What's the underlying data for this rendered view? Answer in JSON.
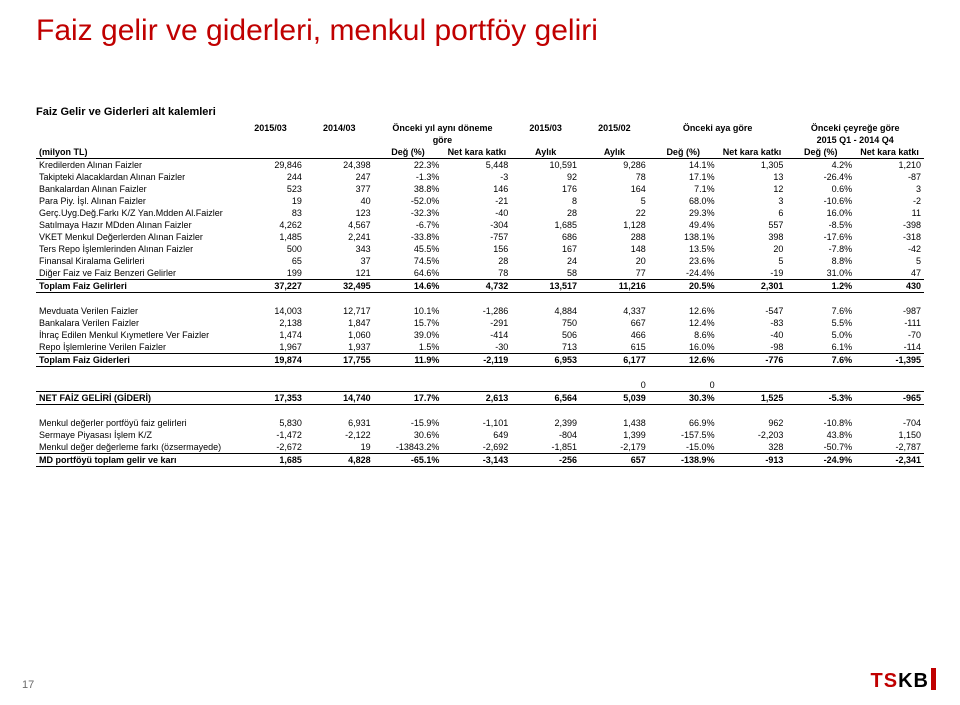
{
  "title": "Faiz gelir ve giderleri, menkul portföy geliri",
  "subtitle": "Faiz Gelir ve Giderleri alt kalemleri",
  "pageNumber": "17",
  "logo": {
    "t": "TS",
    "s": "KB"
  },
  "header1": [
    "",
    "2015/03",
    "2014/03",
    "Önceki yıl aynı döneme",
    "",
    "2015/03",
    "2015/02",
    "Önceki aya göre",
    "",
    "Önceki çeyreğe göre",
    ""
  ],
  "header1b": [
    "",
    "",
    "",
    "göre",
    "",
    "",
    "",
    "",
    "",
    "2015 Q1 - 2014 Q4",
    ""
  ],
  "header2": [
    "(milyon TL)",
    "",
    "",
    "Değ (%)",
    "Net kara katkı",
    "Aylık",
    "Aylık",
    "Değ (%)",
    "Net kara katkı",
    "Değ (%)",
    "Net kara katkı"
  ],
  "sections": [
    {
      "rows": [
        [
          "Kredilerden Alınan Faizler",
          "29,846",
          "24,398",
          "22.3%",
          "5,448",
          "10,591",
          "9,286",
          "14.1%",
          "1,305",
          "4.2%",
          "1,210"
        ],
        [
          "Takipteki Alacaklardan Alınan Faizler",
          "244",
          "247",
          "-1.3%",
          "-3",
          "92",
          "78",
          "17.1%",
          "13",
          "-26.4%",
          "-87"
        ],
        [
          "Bankalardan Alınan Faizler",
          "523",
          "377",
          "38.8%",
          "146",
          "176",
          "164",
          "7.1%",
          "12",
          "0.6%",
          "3"
        ],
        [
          "Para Piy. İşl. Alınan Faizler",
          "19",
          "40",
          "-52.0%",
          "-21",
          "8",
          "5",
          "68.0%",
          "3",
          "-10.6%",
          "-2"
        ],
        [
          "Gerç.Uyg.Değ.Farkı K/Z Yan.Mdden Al.Faizler",
          "83",
          "123",
          "-32.3%",
          "-40",
          "28",
          "22",
          "29.3%",
          "6",
          "16.0%",
          "11"
        ],
        [
          "Satılmaya Hazır MDden Alınan Faizler",
          "4,262",
          "4,567",
          "-6.7%",
          "-304",
          "1,685",
          "1,128",
          "49.4%",
          "557",
          "-8.5%",
          "-398"
        ],
        [
          "VKET Menkul Değerlerden Alınan Faizler",
          "1,485",
          "2,241",
          "-33.8%",
          "-757",
          "686",
          "288",
          "138.1%",
          "398",
          "-17.6%",
          "-318"
        ],
        [
          "Ters Repo İşlemlerinden Alınan Faizler",
          "500",
          "343",
          "45.5%",
          "156",
          "167",
          "148",
          "13.5%",
          "20",
          "-7.8%",
          "-42"
        ],
        [
          "Finansal Kiralama Gelirleri",
          "65",
          "37",
          "74.5%",
          "28",
          "24",
          "20",
          "23.6%",
          "5",
          "8.8%",
          "5"
        ],
        [
          "Diğer Faiz ve Faiz Benzeri Gelirler",
          "199",
          "121",
          "64.6%",
          "78",
          "58",
          "77",
          "-24.4%",
          "-19",
          "31.0%",
          "47"
        ]
      ],
      "boldRow": [
        "Toplam Faiz Gelirleri",
        "37,227",
        "32,495",
        "14.6%",
        "4,732",
        "13,517",
        "11,216",
        "20.5%",
        "2,301",
        "1.2%",
        "430"
      ]
    },
    {
      "rows": [
        [
          "Mevduata Verilen Faizler",
          "14,003",
          "12,717",
          "10.1%",
          "-1,286",
          "4,884",
          "4,337",
          "12.6%",
          "-547",
          "7.6%",
          "-987"
        ],
        [
          "Bankalara Verilen Faizler",
          "2,138",
          "1,847",
          "15.7%",
          "-291",
          "750",
          "667",
          "12.4%",
          "-83",
          "5.5%",
          "-111"
        ],
        [
          "İhraç Edilen Menkul Kıymetlere Ver Faizler",
          "1,474",
          "1,060",
          "39.0%",
          "-414",
          "506",
          "466",
          "8.6%",
          "-40",
          "5.0%",
          "-70"
        ],
        [
          "Repo İşlemlerine Verilen Faizler",
          "1,967",
          "1,937",
          "1.5%",
          "-30",
          "713",
          "615",
          "16.0%",
          "-98",
          "6.1%",
          "-114"
        ]
      ],
      "boldRow": [
        "Toplam Faiz Giderleri",
        "19,874",
        "17,755",
        "11.9%",
        "-2,119",
        "6,953",
        "6,177",
        "12.6%",
        "-776",
        "7.6%",
        "-1,395"
      ]
    },
    {
      "rows": [
        [
          "",
          "",
          "",
          "",
          "",
          "",
          "0",
          "0",
          "",
          "",
          ""
        ]
      ],
      "boldRow": [
        "NET FAİZ GELİRİ (GİDERİ)",
        "17,353",
        "14,740",
        "17.7%",
        "2,613",
        "6,564",
        "5,039",
        "30.3%",
        "1,525",
        "-5.3%",
        "-965"
      ]
    },
    {
      "rows": [
        [
          "Menkul değerler portföyü faiz gelirleri",
          "5,830",
          "6,931",
          "-15.9%",
          "-1,101",
          "2,399",
          "1,438",
          "66.9%",
          "962",
          "-10.8%",
          "-704"
        ],
        [
          "Sermaye Piyasası İşlem K/Z",
          "-1,472",
          "-2,122",
          "30.6%",
          "649",
          "-804",
          "1,399",
          "-157.5%",
          "-2,203",
          "43.8%",
          "1,150"
        ],
        [
          "Menkul değer değerleme farkı (özsermayede)",
          "-2,672",
          "19",
          "-13843.2%",
          "-2,692",
          "-1,851",
          "-2,179",
          "-15.0%",
          "328",
          "-50.7%",
          "-2,787"
        ]
      ],
      "boldRow": [
        "MD portföyü toplam gelir ve karı",
        "1,685",
        "4,828",
        "-65.1%",
        "-3,143",
        "-256",
        "657",
        "-138.9%",
        "-913",
        "-24.9%",
        "-2,341"
      ]
    }
  ]
}
